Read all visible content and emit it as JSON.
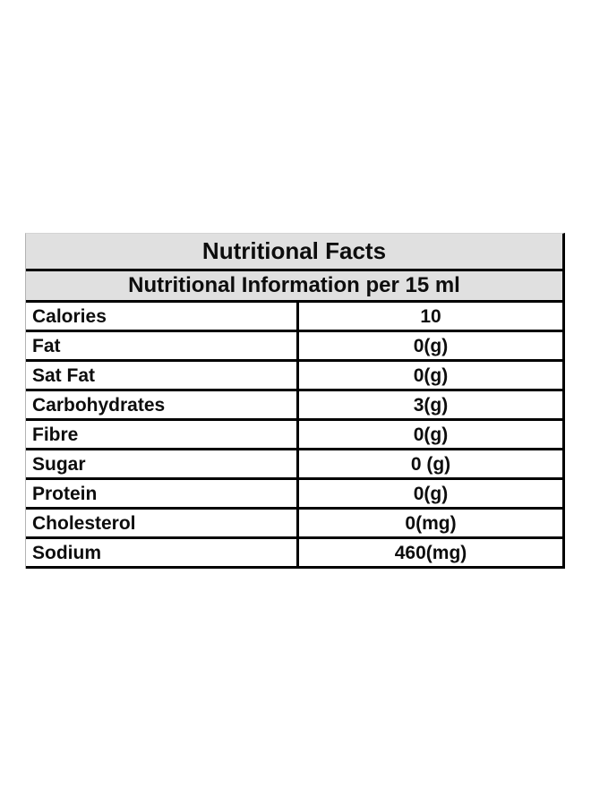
{
  "table": {
    "title": "Nutritional Facts",
    "subtitle": "Nutritional Information per 15 ml",
    "header_bg": "#e0e0e0",
    "border_color": "#000000",
    "text_color": "#0d0d0d",
    "page_bg": "#ffffff",
    "rows": [
      {
        "label": "Calories",
        "value": "10"
      },
      {
        "label": "Fat",
        "value": "0(g)"
      },
      {
        "label": "Sat Fat",
        "value": "0(g)"
      },
      {
        "label": "Carbohydrates",
        "value": "3(g)"
      },
      {
        "label": "Fibre",
        "value": "0(g)"
      },
      {
        "label": "Sugar",
        "value": "0 (g)"
      },
      {
        "label": "Protein",
        "value": "0(g)"
      },
      {
        "label": "Cholesterol",
        "value": "0(mg)"
      },
      {
        "label": "Sodium",
        "value": "460(mg)"
      }
    ]
  }
}
